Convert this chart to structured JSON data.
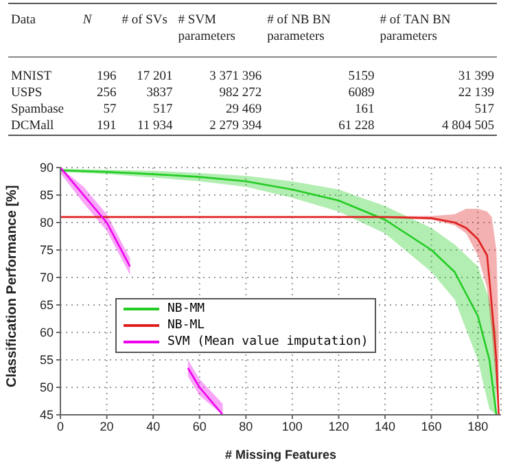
{
  "chart_data": [
    {
      "type": "other",
      "annotations": [
        "Data",
        "N",
        "# of SVs",
        "# SVM parameters",
        "# of NB BN parameters",
        "# of TAN BN parameters",
        "MNIST",
        "196",
        "17 201",
        "3 371 396",
        "5159",
        "31 399",
        "USPS",
        "256",
        "3837",
        "982 272",
        "6089",
        "22 139",
        "Spambase",
        "57",
        "517",
        "29 469",
        "161",
        "517",
        "DCMall",
        "191",
        "11 934",
        "2 279 394",
        "61 228",
        "4 804 505"
      ]
    },
    {
      "type": "line",
      "xlabel": "# Missing Features",
      "ylabel": "Classification Performance [%]",
      "xlim": [
        0,
        190
      ],
      "xticks": [
        0,
        20,
        40,
        60,
        80,
        100,
        120,
        140,
        160,
        180
      ],
      "ylim": [
        45,
        90
      ],
      "yticks": [
        45,
        50,
        55,
        60,
        65,
        70,
        75,
        80,
        85,
        90
      ],
      "grid": true,
      "legend": "left",
      "marker": "none",
      "line_style": "solid",
      "series": [
        {
          "name": "NB-MM",
          "color": "#22cc22",
          "x": [
            0,
            20,
            40,
            60,
            80,
            100,
            120,
            140,
            160,
            170,
            180,
            185,
            188
          ],
          "values": [
            89.5,
            89.2,
            88.8,
            88.3,
            87.5,
            86,
            84,
            80.5,
            75,
            71,
            63,
            55,
            45
          ],
          "lower": [
            89.2,
            88.8,
            88.2,
            87.5,
            86.5,
            84.5,
            82,
            78,
            71,
            66,
            55,
            46,
            45
          ],
          "upper": [
            89.8,
            89.6,
            89.4,
            89,
            88.5,
            87.5,
            86,
            83,
            79,
            76,
            72,
            66,
            60
          ]
        },
        {
          "name": "NB-ML",
          "color": "#e02020",
          "x": [
            0,
            140,
            160,
            170,
            175,
            180,
            184,
            186,
            188,
            189
          ],
          "values": [
            81,
            81,
            80.8,
            80,
            79,
            77,
            74,
            65,
            55,
            45
          ],
          "lower": [
            80.8,
            80.8,
            80.5,
            79.5,
            78,
            74,
            68,
            60,
            50,
            45
          ],
          "upper": [
            81.2,
            81.2,
            81.2,
            81.5,
            82.5,
            82.5,
            82,
            81,
            75,
            60
          ]
        },
        {
          "name": "SVM (Mean value imputation)",
          "color": "#ee00ee",
          "x": [
            0,
            10,
            20,
            30,
            40,
            55,
            60,
            70
          ],
          "values": [
            90,
            85,
            80,
            72,
            null,
            53.5,
            50,
            45
          ],
          "lower": [
            89,
            83.5,
            78.5,
            70.5,
            null,
            52,
            48.5,
            45
          ],
          "upper": [
            90,
            86.5,
            81.5,
            73.5,
            null,
            55,
            51.5,
            47
          ]
        }
      ]
    }
  ]
}
